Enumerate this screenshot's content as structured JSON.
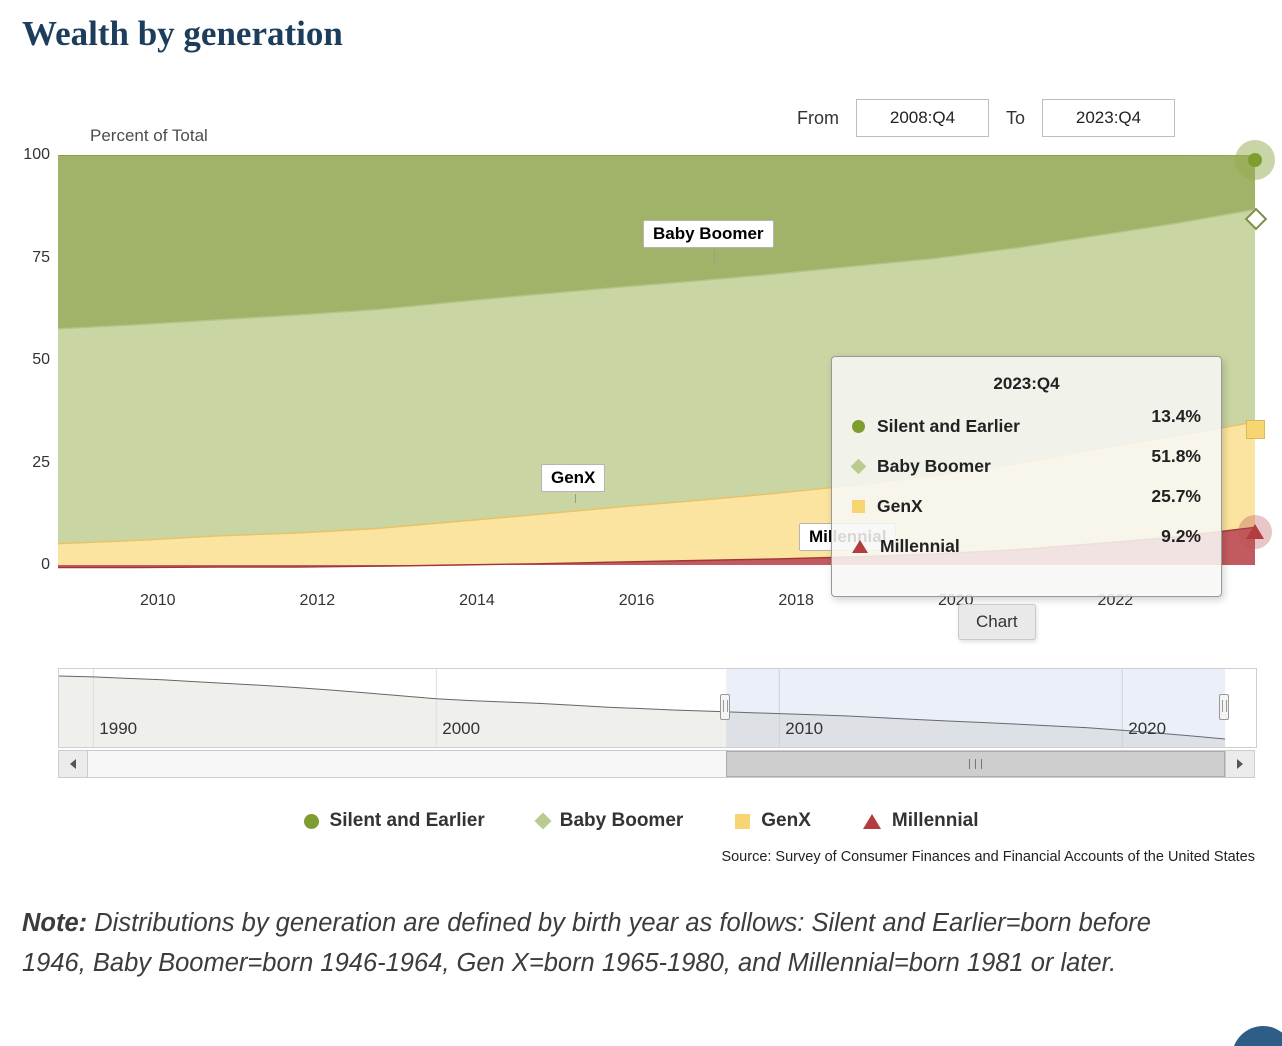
{
  "page": {
    "title": "Wealth by generation",
    "source": "Source: Survey of Consumer Finances and Financial Accounts of the United States",
    "note_label": "Note:",
    "note_text": " Distributions by generation are defined by birth year as follows: Silent and Earlier=born before 1946, Baby Boomer=born 1946-1964, Gen X=born 1965-1980, and Millennial=born 1981 or later."
  },
  "range_selector": {
    "from_label": "From",
    "from_value": "2008:Q4",
    "to_label": "To",
    "to_value": "2023:Q4"
  },
  "chart_button_label": "Chart",
  "chart_data": {
    "type": "area",
    "stacking": "percent",
    "title": "Wealth by generation",
    "xlabel": "",
    "ylabel": "Percent of Total",
    "yaxis_label": "Percent of Total",
    "ylim": [
      0,
      100
    ],
    "yticks": [
      100,
      75,
      50,
      25,
      0
    ],
    "xticks": [
      2010,
      2012,
      2014,
      2016,
      2018,
      2020,
      2022
    ],
    "x_range": [
      2008.75,
      2023.75
    ],
    "x": [
      2008.75,
      2009.75,
      2010.75,
      2011.75,
      2012.75,
      2013.75,
      2014.75,
      2015.75,
      2016.75,
      2017.75,
      2018.75,
      2019.75,
      2020.75,
      2021.75,
      2022.75,
      2023.75
    ],
    "series": [
      {
        "key": "millennial",
        "name": "Millennial",
        "marker_shape": "triangle",
        "marker_color": "#b23c3f",
        "line_color": "#a23538",
        "fill_color": "#c25b5f",
        "values": [
          -0.6,
          -0.6,
          -0.5,
          -0.5,
          -0.3,
          0.0,
          0.3,
          0.7,
          1.1,
          1.5,
          2.0,
          2.7,
          3.7,
          5.2,
          6.8,
          9.2
        ]
      },
      {
        "key": "genx",
        "name": "GenX",
        "marker_shape": "square",
        "marker_color": "#f7d572",
        "line_color": "#e9c363",
        "fill_color": "#fbe3a0",
        "values": [
          5.8,
          6.6,
          7.6,
          8.3,
          9.2,
          10.6,
          12.0,
          13.4,
          14.6,
          16.0,
          17.5,
          19.1,
          21.0,
          23.0,
          24.6,
          25.7
        ]
      },
      {
        "key": "boomer",
        "name": "Baby Boomer",
        "marker_shape": "diamond",
        "marker_color": "#b9cb8e",
        "line_color": "#b2c486",
        "fill_color": "#c9d5a3",
        "values": [
          52.4,
          52.6,
          52.7,
          53.2,
          53.4,
          53.6,
          53.7,
          53.6,
          53.6,
          53.5,
          53.4,
          53.0,
          52.6,
          52.1,
          51.9,
          51.8
        ]
      },
      {
        "key": "silent",
        "name": "Silent and Earlier",
        "marker_shape": "circle",
        "marker_color": "#7e9d30",
        "line_color": "#7e9d30",
        "fill_color": "#a0b368",
        "values": [
          42.4,
          41.4,
          40.2,
          39.0,
          37.7,
          35.8,
          34.0,
          32.3,
          30.7,
          29.0,
          27.1,
          25.2,
          22.7,
          19.7,
          16.7,
          13.4
        ]
      }
    ],
    "last_point_values": {
      "silent": 13.4,
      "boomer": 51.8,
      "genx": 25.7,
      "millennial": 9.2
    }
  },
  "tooltip": {
    "header": "2023:Q4",
    "rows": [
      {
        "name": "Silent and Earlier",
        "value": "13.4%",
        "marker": "circle"
      },
      {
        "name": "Baby Boomer",
        "value": "51.8%",
        "marker": "diamond"
      },
      {
        "name": "GenX",
        "value": "25.7%",
        "marker": "square"
      },
      {
        "name": "Millennial",
        "value": "9.2%",
        "marker": "triangle"
      }
    ]
  },
  "navigator": {
    "x_range": [
      1989.0,
      2023.9
    ],
    "selected_range": [
      2008.45,
      2023.0
    ],
    "xticks": [
      1990,
      2000,
      2010,
      2020
    ],
    "series": {
      "name": "Silent and Earlier",
      "x": [
        1989,
        1990,
        1991,
        1992,
        1993,
        1994,
        1995,
        1996,
        1997,
        1998,
        1999,
        2000,
        2001,
        2002,
        2003,
        2004,
        2005,
        2006,
        2007,
        2008,
        2009,
        2010,
        2011,
        2012,
        2013,
        2014,
        2015,
        2016,
        2017,
        2018,
        2019,
        2020,
        2021,
        2022,
        2023
      ],
      "values": [
        80,
        79,
        77.5,
        76,
        74,
        72,
        70,
        67.5,
        65,
        62,
        59,
        56,
        54,
        52.5,
        51,
        49,
        47,
        45.5,
        44,
        42.8,
        41.4,
        40.2,
        39,
        37.7,
        35.8,
        34,
        32.3,
        30.7,
        29,
        27.1,
        25.2,
        22.7,
        19.7,
        16.7,
        13.4
      ]
    }
  },
  "legend": {
    "items": [
      {
        "label": "Silent and Earlier",
        "marker": "circle"
      },
      {
        "label": "Baby Boomer",
        "marker": "diamond"
      },
      {
        "label": "GenX",
        "marker": "square"
      },
      {
        "label": "Millennial",
        "marker": "triangle"
      }
    ]
  }
}
